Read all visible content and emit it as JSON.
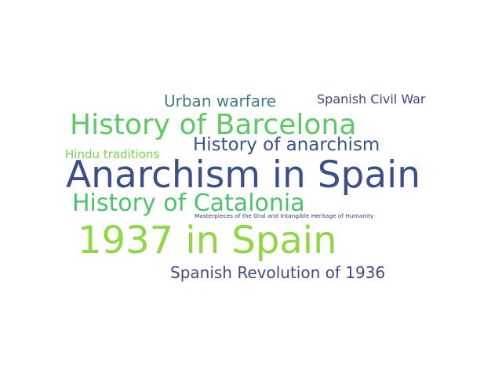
{
  "word_cloud": {
    "words": [
      {
        "text": "Urban warfare",
        "color": "#3f7a8a"
      },
      {
        "text": "Spanish Civil War",
        "color": "#414487"
      },
      {
        "text": "History of Barcelona",
        "color": "#5ec962"
      },
      {
        "text": "History of anarchism",
        "color": "#3b528b"
      },
      {
        "text": "Hindu traditions",
        "color": "#7ad151"
      },
      {
        "text": "Anarchism in Spain",
        "color": "#3b4f88"
      },
      {
        "text": "History of Catalonia",
        "color": "#4cc26c"
      },
      {
        "text": "Masterpieces of the Oral and Intangible Heritage of Humanity",
        "color": "#46337e"
      },
      {
        "text": "1937 in Spain",
        "color": "#8fd744"
      },
      {
        "text": "Spanish Revolution of 1936",
        "color": "#424a86"
      }
    ]
  }
}
